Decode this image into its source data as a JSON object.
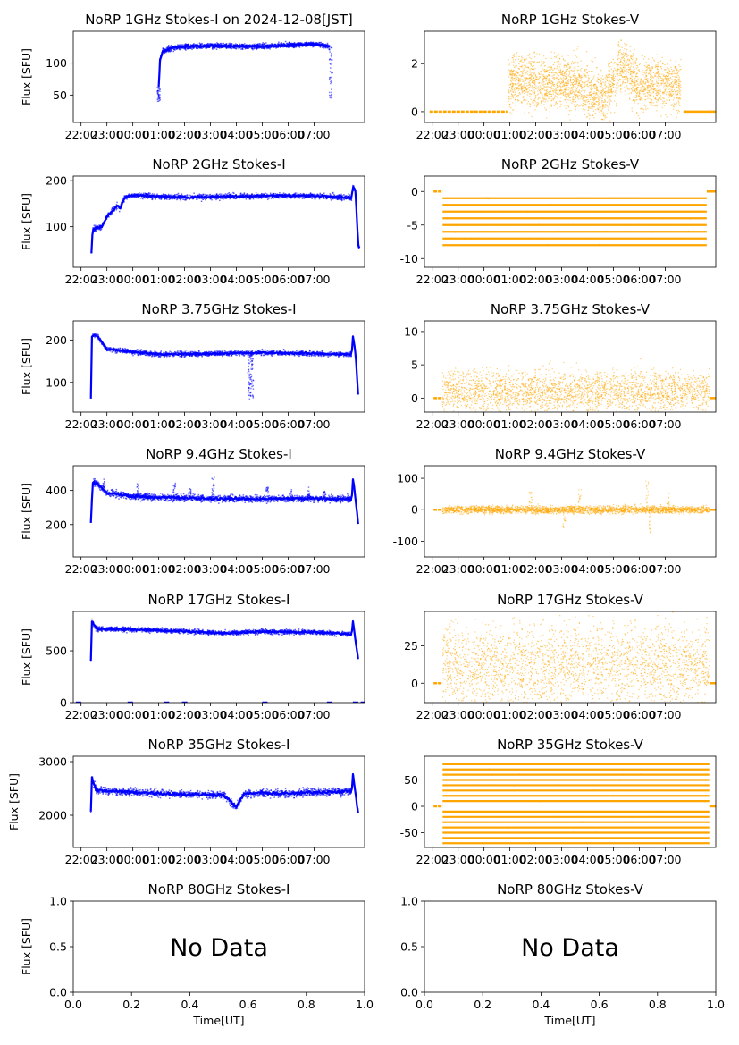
{
  "figure": {
    "x_ticks": [
      "22:00",
      "23:00",
      "00:00",
      "01:00",
      "02:00",
      "03:00",
      "04:00",
      "05:00",
      "06:00",
      "07:00"
    ],
    "ylabel": "Flux [SFU]",
    "xlabel": "Time[UT]",
    "no_data_text": "No Data"
  },
  "chart_data": [
    {
      "id": "p1",
      "type": "scatter",
      "title": "NoRP 1GHz Stokes-I on 2024-12-08[JST]",
      "color": "#0000ff",
      "x_range_hours": [
        -2.3,
        8.95
      ],
      "ylim": [
        7,
        150
      ],
      "yticks": [
        50,
        100
      ],
      "ylabel": "Flux [SFU]",
      "data_start": 0.9,
      "data_end": 7.7,
      "segments": [
        [
          1.0,
          62
        ],
        [
          1.05,
          105
        ],
        [
          1.15,
          118
        ],
        [
          1.5,
          124
        ],
        [
          2.0,
          126
        ],
        [
          3.0,
          127
        ],
        [
          5.0,
          126
        ],
        [
          6.0,
          128
        ],
        [
          7.0,
          130
        ],
        [
          7.6,
          126
        ]
      ],
      "dips": [
        [
          1.0,
          40
        ],
        [
          7.65,
          38
        ]
      ],
      "noise": 2,
      "point_size": 1.5
    },
    {
      "id": "p2",
      "type": "scatter",
      "title": "NoRP 1GHz Stokes-V",
      "color": "#ffa500",
      "x_range_hours": [
        -2.3,
        8.95
      ],
      "ylim": [
        -0.45,
        3.35
      ],
      "yticks": [
        0,
        2
      ],
      "data_start": -2.1,
      "data_end": 9.0,
      "flat_before": [
        -2.1,
        0.9,
        0
      ],
      "flat_after": [
        7.7,
        9.0,
        0
      ],
      "segments": [
        [
          0.95,
          1.2
        ],
        [
          1.5,
          1.3
        ],
        [
          2.5,
          1.1
        ],
        [
          3.0,
          1.3
        ],
        [
          3.5,
          1.2
        ],
        [
          4.0,
          1.0
        ],
        [
          4.5,
          0.6
        ],
        [
          5.0,
          1.2
        ],
        [
          5.4,
          2.1
        ],
        [
          5.7,
          1.5
        ],
        [
          6.0,
          1.0
        ],
        [
          6.5,
          1.2
        ],
        [
          7.0,
          1.1
        ],
        [
          7.6,
          1.0
        ]
      ],
      "noise": 0.55,
      "point_size": 1.2
    },
    {
      "id": "p3",
      "type": "scatter",
      "title": "NoRP 2GHz Stokes-I",
      "color": "#0000ff",
      "x_range_hours": [
        -2.3,
        8.95
      ],
      "ylim": [
        12,
        210
      ],
      "yticks": [
        100,
        200
      ],
      "ylabel": "Flux [SFU]",
      "data_start": -1.65,
      "data_end": 8.75,
      "segments": [
        [
          -1.6,
          42
        ],
        [
          -1.55,
          95
        ],
        [
          -1.2,
          100
        ],
        [
          -1.0,
          122
        ],
        [
          -0.6,
          145
        ],
        [
          -0.5,
          140
        ],
        [
          -0.3,
          165
        ],
        [
          0.0,
          168
        ],
        [
          2.0,
          164
        ],
        [
          4.0,
          166
        ],
        [
          6.0,
          168
        ],
        [
          7.5,
          166
        ],
        [
          8.0,
          164
        ],
        [
          8.45,
          162
        ],
        [
          8.5,
          185
        ],
        [
          8.6,
          180
        ],
        [
          8.7,
          60
        ],
        [
          8.75,
          52
        ]
      ],
      "noise": 3,
      "point_size": 1.5
    },
    {
      "id": "p4",
      "type": "scatter",
      "title": "NoRP 2GHz Stokes-V",
      "color": "#ffa500",
      "x_range_hours": [
        -2.3,
        8.95
      ],
      "ylim": [
        -11.3,
        2.3
      ],
      "yticks": [
        -10,
        -5,
        0
      ],
      "data_start": -1.6,
      "data_end": 8.6,
      "flat_before": [
        -1.95,
        -1.6,
        0
      ],
      "flat_after": [
        8.6,
        9.0,
        0
      ],
      "levels": [
        -8,
        -7,
        -6,
        -5,
        -4,
        -3,
        -2,
        -1
      ],
      "noise": 0.15,
      "point_size": 1.2
    },
    {
      "id": "p5",
      "type": "scatter",
      "title": "NoRP 3.75GHz Stokes-I",
      "color": "#0000ff",
      "x_range_hours": [
        -2.3,
        8.95
      ],
      "ylim": [
        30,
        245
      ],
      "yticks": [
        100,
        200
      ],
      "ylabel": "Flux [SFU]",
      "data_start": -1.65,
      "data_end": 8.75,
      "segments": [
        [
          -1.62,
          60
        ],
        [
          -1.58,
          210
        ],
        [
          -1.4,
          212
        ],
        [
          -1.0,
          178
        ],
        [
          0.0,
          172
        ],
        [
          1.0,
          166
        ],
        [
          3.0,
          168
        ],
        [
          5.0,
          170
        ],
        [
          7.0,
          168
        ],
        [
          8.45,
          166
        ],
        [
          8.5,
          210
        ],
        [
          8.6,
          168
        ],
        [
          8.7,
          70
        ]
      ],
      "dips": [
        [
          4.5,
          60
        ],
        [
          4.6,
          62
        ]
      ],
      "noise": 3,
      "point_size": 1.5
    },
    {
      "id": "p6",
      "type": "scatter",
      "title": "NoRP 3.75GHz Stokes-V",
      "color": "#ffa500",
      "x_range_hours": [
        -2.3,
        8.95
      ],
      "ylim": [
        -2.1,
        11.6
      ],
      "yticks": [
        0,
        5,
        10
      ],
      "data_start": -1.6,
      "data_end": 8.7,
      "flat_before": [
        -1.95,
        -1.6,
        0
      ],
      "flat_after": [
        8.7,
        9.0,
        0
      ],
      "segments": [
        [
          -1.6,
          1.0
        ],
        [
          1.0,
          1.0
        ],
        [
          4.0,
          1.0
        ],
        [
          8.7,
          1.0
        ]
      ],
      "noise": 1.6,
      "point_size": 1.2
    },
    {
      "id": "p7",
      "type": "scatter",
      "title": "NoRP 9.4GHz Stokes-I",
      "color": "#0000ff",
      "x_range_hours": [
        -2.3,
        8.95
      ],
      "ylim": [
        10,
        545
      ],
      "yticks": [
        200,
        400
      ],
      "ylabel": "Flux [SFU]",
      "data_start": -1.65,
      "data_end": 8.75,
      "segments": [
        [
          -1.62,
          210
        ],
        [
          -1.55,
          450
        ],
        [
          -1.4,
          445
        ],
        [
          -1.0,
          385
        ],
        [
          0.0,
          365
        ],
        [
          2.0,
          355
        ],
        [
          4.0,
          350
        ],
        [
          6.0,
          352
        ],
        [
          8.45,
          350
        ],
        [
          8.5,
          470
        ],
        [
          8.6,
          350
        ],
        [
          8.7,
          210
        ]
      ],
      "spikes": [
        [
          -1.1,
          470
        ],
        [
          0.2,
          440
        ],
        [
          1.6,
          460
        ],
        [
          2.2,
          420
        ],
        [
          3.1,
          480
        ],
        [
          5.2,
          420
        ],
        [
          6.1,
          410
        ],
        [
          6.8,
          420
        ],
        [
          7.4,
          400
        ]
      ],
      "noise": 10,
      "point_size": 1.5
    },
    {
      "id": "p8",
      "type": "scatter",
      "title": "NoRP 9.4GHz Stokes-V",
      "color": "#ffa500",
      "x_range_hours": [
        -2.3,
        8.95
      ],
      "ylim": [
        -150,
        140
      ],
      "yticks": [
        -100,
        0,
        100
      ],
      "data_start": -1.6,
      "data_end": 8.7,
      "flat_before": [
        -1.95,
        -1.6,
        0
      ],
      "flat_after": [
        8.7,
        9.0,
        0
      ],
      "segments": [
        [
          -1.6,
          0
        ],
        [
          8.7,
          0
        ]
      ],
      "spikes": [
        [
          1.8,
          60
        ],
        [
          3.7,
          70
        ],
        [
          6.3,
          100
        ],
        [
          6.4,
          -80
        ],
        [
          7.1,
          60
        ],
        [
          3.1,
          -60
        ]
      ],
      "noise": 6,
      "point_size": 1.2
    },
    {
      "id": "p9",
      "type": "scatter",
      "title": "NoRP 17GHz Stokes-I",
      "color": "#0000ff",
      "x_range_hours": [
        -2.3,
        8.95
      ],
      "ylim": [
        0,
        880
      ],
      "yticks": [
        0,
        500
      ],
      "ylabel": "Flux [SFU]",
      "data_start": -1.65,
      "data_end": 8.75,
      "segments": [
        [
          -1.62,
          410
        ],
        [
          -1.58,
          790
        ],
        [
          -1.4,
          710
        ],
        [
          0.0,
          705
        ],
        [
          2.0,
          690
        ],
        [
          3.6,
          670
        ],
        [
          4.3,
          680
        ],
        [
          5.0,
          685
        ],
        [
          7.0,
          680
        ],
        [
          8.45,
          660
        ],
        [
          8.5,
          790
        ],
        [
          8.6,
          600
        ],
        [
          8.7,
          420
        ]
      ],
      "zero_marks": [
        -2.1,
        -0.1,
        1.3,
        2.0,
        5.1,
        7.6,
        8.6,
        8.9
      ],
      "noise": 12,
      "point_size": 1.5
    },
    {
      "id": "p10",
      "type": "scatter",
      "title": "NoRP 17GHz Stokes-V",
      "color": "#ffa500",
      "x_range_hours": [
        -2.3,
        8.95
      ],
      "ylim": [
        -13,
        48
      ],
      "yticks": [
        0,
        25
      ],
      "data_start": -1.6,
      "data_end": 8.7,
      "flat_before": [
        -1.95,
        -1.6,
        0
      ],
      "flat_after": [
        8.7,
        9.0,
        0
      ],
      "segments": [
        [
          -1.6,
          12
        ],
        [
          8.7,
          12
        ]
      ],
      "noise": 14,
      "point_size": 1.2
    },
    {
      "id": "p11",
      "type": "scatter",
      "title": "NoRP 35GHz Stokes-I",
      "color": "#0000ff",
      "x_range_hours": [
        -2.3,
        8.95
      ],
      "ylim": [
        1400,
        3100
      ],
      "yticks": [
        2000,
        3000
      ],
      "ylabel": "Flux [SFU]",
      "data_start": -1.65,
      "data_end": 8.75,
      "segments": [
        [
          -1.62,
          2050
        ],
        [
          -1.58,
          2700
        ],
        [
          -1.4,
          2460
        ],
        [
          0.0,
          2430
        ],
        [
          2.0,
          2390
        ],
        [
          3.5,
          2380
        ],
        [
          4.0,
          2150
        ],
        [
          4.3,
          2400
        ],
        [
          5.0,
          2420
        ],
        [
          6.0,
          2400
        ],
        [
          7.0,
          2430
        ],
        [
          8.45,
          2450
        ],
        [
          8.5,
          2760
        ],
        [
          8.6,
          2400
        ],
        [
          8.7,
          2050
        ]
      ],
      "noise": 35,
      "point_size": 1.5
    },
    {
      "id": "p12",
      "type": "scatter",
      "title": "NoRP 35GHz Stokes-V",
      "color": "#ffa500",
      "x_range_hours": [
        -2.3,
        8.95
      ],
      "ylim": [
        -78,
        95
      ],
      "yticks": [
        -50,
        0,
        50
      ],
      "data_start": -1.6,
      "data_end": 8.7,
      "flat_before": [
        -1.95,
        -1.6,
        0
      ],
      "flat_after": [
        8.7,
        9.0,
        0
      ],
      "levels": [
        -70,
        -60,
        -50,
        -40,
        -30,
        -20,
        -10,
        10,
        20,
        30,
        40,
        50,
        60,
        70,
        80
      ],
      "noise": 1,
      "point_size": 1.2
    },
    {
      "id": "p13",
      "type": "empty",
      "title": "NoRP 80GHz Stokes-I",
      "ylabel": "Flux [SFU]",
      "xlabel": "Time[UT]",
      "xlim": [
        0,
        1
      ],
      "ylim": [
        0,
        1
      ],
      "xticks": [
        "0.0",
        "0.2",
        "0.4",
        "0.6",
        "0.8",
        "1.0"
      ],
      "yticks": [
        "0.0",
        "0.5",
        "1.0"
      ],
      "annotation": "No Data"
    },
    {
      "id": "p14",
      "type": "empty",
      "title": "NoRP 80GHz Stokes-V",
      "xlabel": "Time[UT]",
      "xlim": [
        0,
        1
      ],
      "ylim": [
        0,
        1
      ],
      "xticks": [
        "0.0",
        "0.2",
        "0.4",
        "0.6",
        "0.8",
        "1.0"
      ],
      "yticks": [
        "0.0",
        "0.5",
        "1.0"
      ],
      "annotation": "No Data"
    }
  ]
}
